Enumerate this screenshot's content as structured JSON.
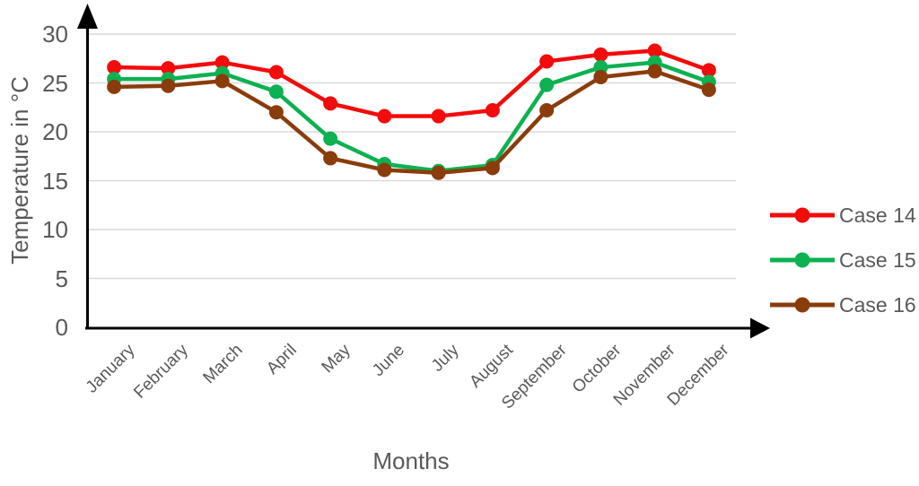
{
  "chart_data": {
    "type": "line",
    "title": "",
    "xlabel": "Months",
    "ylabel": "Temperature in °C",
    "categories": [
      "January",
      "February",
      "March",
      "April",
      "May",
      "June",
      "July",
      "August",
      "September",
      "October",
      "November",
      "December"
    ],
    "y_ticks": [
      0,
      5,
      10,
      15,
      20,
      25,
      30
    ],
    "ylim": [
      0,
      30
    ],
    "grid": true,
    "legend_position": "right",
    "series": [
      {
        "name": "Case 14",
        "color": "#f20c0c",
        "values": [
          26.6,
          26.5,
          27.1,
          26.1,
          22.9,
          21.6,
          21.6,
          22.2,
          27.2,
          27.9,
          28.3,
          26.3
        ]
      },
      {
        "name": "Case 15",
        "color": "#0db151",
        "values": [
          25.4,
          25.4,
          26.0,
          24.1,
          19.3,
          16.7,
          16.0,
          16.6,
          24.8,
          26.6,
          27.1,
          25.1
        ]
      },
      {
        "name": "Case 16",
        "color": "#8a3c0c",
        "values": [
          24.6,
          24.7,
          25.2,
          22.0,
          17.3,
          16.1,
          15.8,
          16.3,
          22.2,
          25.6,
          26.2,
          24.3
        ]
      }
    ],
    "colors": {
      "axis": "#000000",
      "gridline": "#d9d9d9",
      "text": "#595959"
    }
  }
}
